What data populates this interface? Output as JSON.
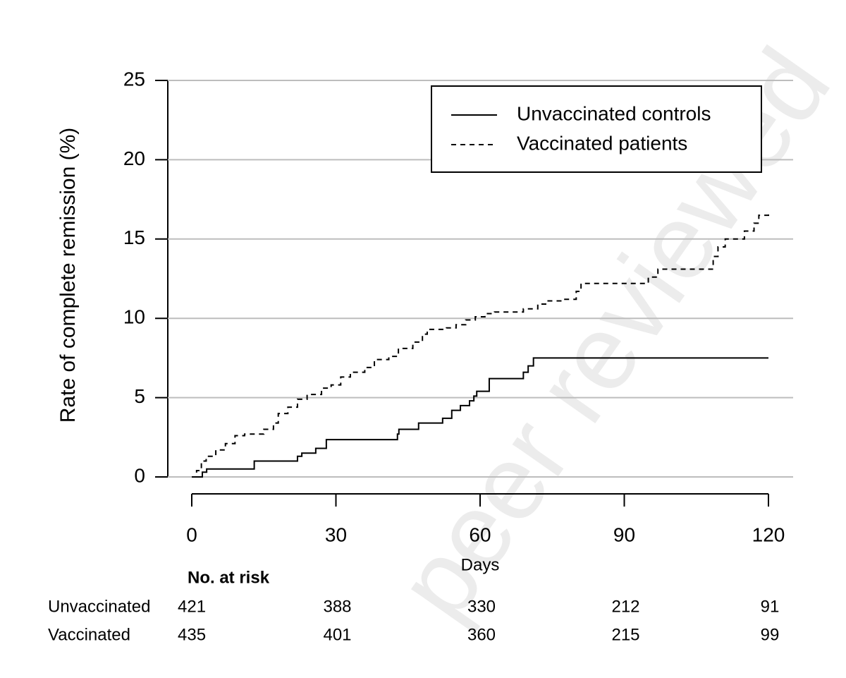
{
  "watermark": "peer reviewed",
  "chart_data": {
    "type": "step",
    "ylabel": "Rate of complete remission (%)",
    "xlabel": "Days",
    "xlim": [
      0,
      120
    ],
    "xticks": [
      0,
      30,
      60,
      90,
      120
    ],
    "ylim": [
      0,
      25
    ],
    "yticks": [
      0,
      5,
      10,
      15,
      20,
      25
    ],
    "grid": true,
    "legend": "upper right",
    "series": [
      {
        "name": "Unvaccinated controls",
        "color": "#000000",
        "dash": "solid",
        "x": [
          0,
          2.2,
          3.1,
          13,
          22,
          22.9,
          25.8,
          28,
          42.8,
          43.1,
          47.2,
          52.2,
          54.1,
          55.9,
          57.8,
          58.7,
          59.3,
          61.9,
          69,
          70,
          71.1,
          120
        ],
        "values": [
          0,
          0.3,
          0.5,
          1.0,
          1.3,
          1.5,
          1.8,
          2.35,
          2.7,
          3.0,
          3.4,
          3.7,
          4.2,
          4.5,
          4.8,
          5.1,
          5.4,
          6.2,
          6.6,
          7.0,
          7.5,
          7.5
        ]
      },
      {
        "name": "Vaccinated patients",
        "color": "#000000",
        "dash": "dashed",
        "x": [
          0,
          1,
          2,
          3,
          5,
          7,
          9,
          11,
          15,
          17,
          18,
          20,
          22,
          24,
          27,
          29,
          31,
          33,
          36,
          38,
          41,
          43,
          46,
          48,
          49,
          53,
          55,
          57,
          59,
          61,
          63,
          69,
          72,
          74,
          77,
          80,
          81,
          95,
          97,
          108.5,
          109.5,
          111,
          115,
          117,
          118,
          120
        ],
        "values": [
          0,
          0.4,
          1.0,
          1.3,
          1.7,
          2.1,
          2.6,
          2.7,
          3.0,
          3.4,
          4.0,
          4.4,
          4.9,
          5.2,
          5.6,
          5.8,
          6.3,
          6.6,
          6.9,
          7.4,
          7.6,
          8.1,
          8.5,
          9.0,
          9.3,
          9.4,
          9.6,
          9.9,
          10.1,
          10.3,
          10.4,
          10.6,
          10.9,
          11.1,
          11.2,
          11.7,
          12.2,
          12.6,
          13.1,
          13.9,
          14.5,
          15.0,
          15.5,
          16.0,
          16.5,
          16.7
        ]
      }
    ],
    "risk_table": {
      "title": "No. at risk",
      "rows": [
        {
          "label": "Unvaccinated",
          "values": [
            421,
            388,
            330,
            212,
            91
          ]
        },
        {
          "label": "Vaccinated",
          "values": [
            435,
            401,
            360,
            215,
            99
          ]
        }
      ]
    }
  }
}
